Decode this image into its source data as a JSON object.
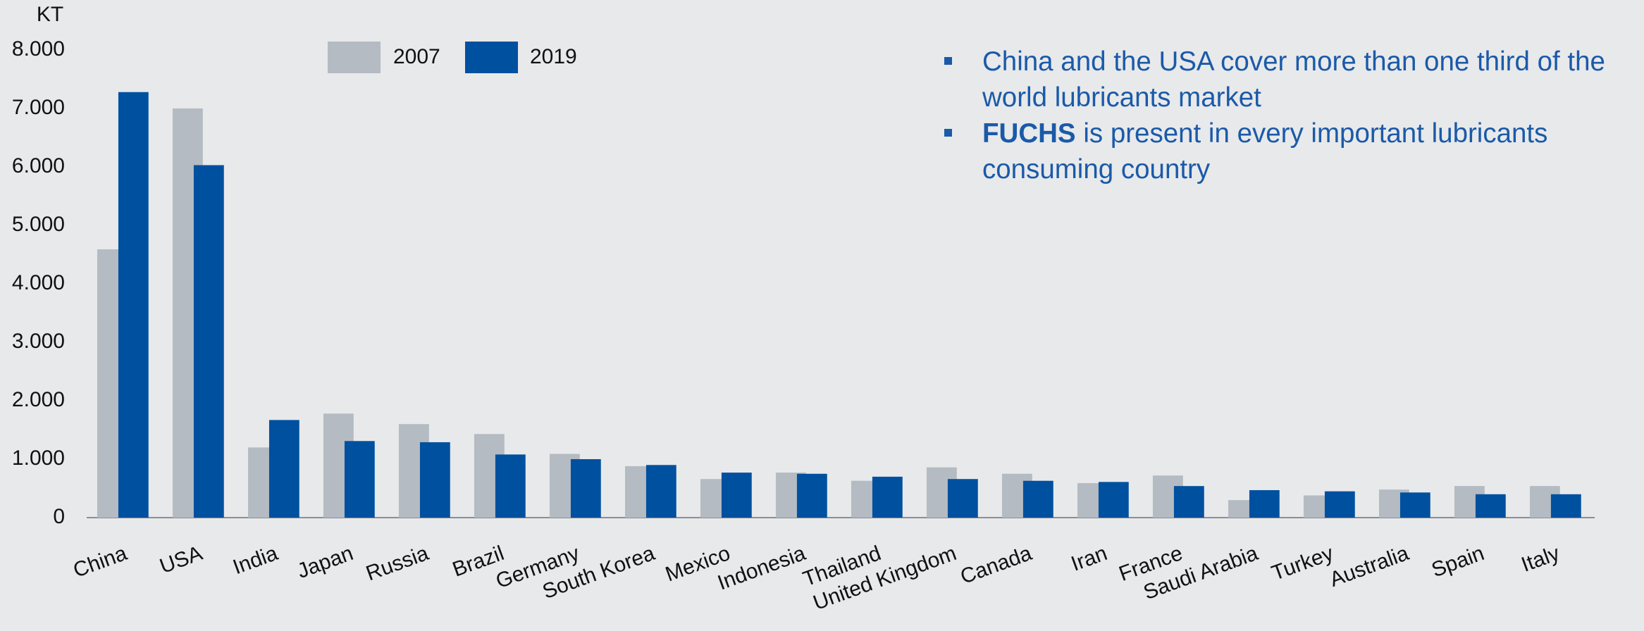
{
  "chart_data": {
    "type": "bar",
    "y_label": "KT",
    "categories": [
      "China",
      "USA",
      "India",
      "Japan",
      "Russia",
      "Brazil",
      "Germany",
      "South Korea",
      "Mexico",
      "Indonesia",
      "Thailand",
      "United Kingdom",
      "Canada",
      "Iran",
      "France",
      "Saudi Arabia",
      "Turkey",
      "Australia",
      "Spain",
      "Italy"
    ],
    "series": [
      {
        "name": "2007",
        "color": "#b4bbc2",
        "values": [
          4590,
          7000,
          1200,
          1780,
          1600,
          1430,
          1090,
          880,
          660,
          770,
          630,
          860,
          750,
          590,
          720,
          300,
          380,
          480,
          540,
          540
        ]
      },
      {
        "name": "2019",
        "color": "#0050a0",
        "values": [
          7280,
          6030,
          1670,
          1310,
          1290,
          1080,
          1000,
          900,
          770,
          750,
          700,
          660,
          630,
          610,
          540,
          470,
          450,
          430,
          400,
          400
        ]
      }
    ],
    "ylim": [
      0,
      8000
    ],
    "yticks": [
      0,
      {
        "value": 1000,
        "label": "1.000"
      },
      {
        "value": 2000,
        "label": "2.000"
      },
      {
        "value": 3000,
        "label": "3.000"
      },
      {
        "value": 4000,
        "label": "4.000"
      },
      {
        "value": 5000,
        "label": "5.000"
      },
      {
        "value": 6000,
        "label": "6.000"
      },
      {
        "value": 7000,
        "label": "7.000"
      },
      {
        "value": 8000,
        "label": "8.000"
      }
    ],
    "grid": false,
    "legend": "top",
    "annotations": [
      {
        "text": "China and the USA cover more than one third of the world lubricants market"
      },
      {
        "bold": "FUCHS",
        "text": "is present in every important lubricants consuming country"
      }
    ]
  }
}
